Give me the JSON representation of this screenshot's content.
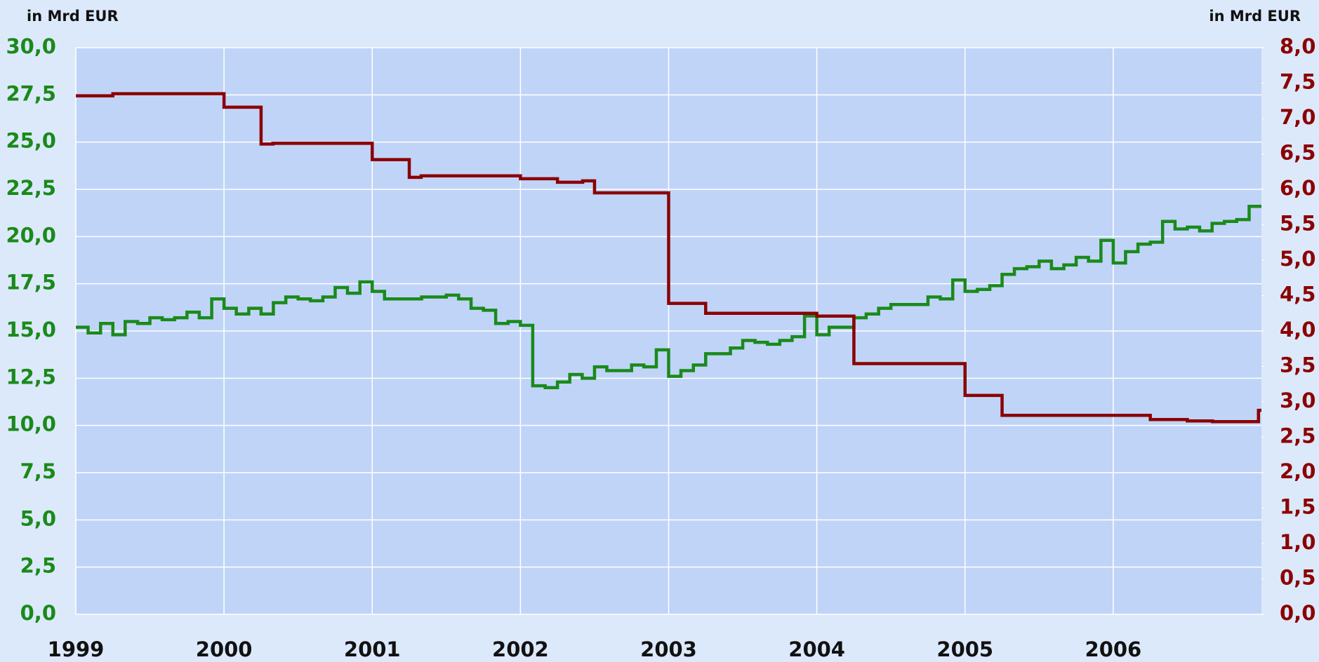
{
  "chart_data": {
    "type": "step",
    "y_label": "in Mrd EUR",
    "y2_label": "in Mrd EUR",
    "xlim": [
      1999,
      2007
    ],
    "xticks": [
      1999,
      2000,
      2001,
      2002,
      2003,
      2004,
      2005,
      2006
    ],
    "ylim": [
      0,
      30
    ],
    "yticks": [
      {
        "value": 0,
        "label": "0,0"
      },
      {
        "value": 2.5,
        "label": "2,5"
      },
      {
        "value": 5,
        "label": "5,0"
      },
      {
        "value": 7.5,
        "label": "7,5"
      },
      {
        "value": 10,
        "label": "10,0"
      },
      {
        "value": 12.5,
        "label": "12,5"
      },
      {
        "value": 15,
        "label": "15,0"
      },
      {
        "value": 17.5,
        "label": "17,5"
      },
      {
        "value": 20,
        "label": "20,0"
      },
      {
        "value": 22.5,
        "label": "22,5"
      },
      {
        "value": 25,
        "label": "25,0"
      },
      {
        "value": 27.5,
        "label": "27,5"
      },
      {
        "value": 30,
        "label": "30,0"
      }
    ],
    "y2lim": [
      0,
      8
    ],
    "y2ticks": [
      {
        "value": 0,
        "label": "0,0"
      },
      {
        "value": 0.5,
        "label": "0,5"
      },
      {
        "value": 1,
        "label": "1,0"
      },
      {
        "value": 1.5,
        "label": "1,5"
      },
      {
        "value": 2,
        "label": "2,0"
      },
      {
        "value": 2.5,
        "label": "2,5"
      },
      {
        "value": 3,
        "label": "3,0"
      },
      {
        "value": 3.5,
        "label": "3,5"
      },
      {
        "value": 4,
        "label": "4,0"
      },
      {
        "value": 4.5,
        "label": "4,5"
      },
      {
        "value": 5,
        "label": "5,0"
      },
      {
        "value": 5.5,
        "label": "5,5"
      },
      {
        "value": 6,
        "label": "6,0"
      },
      {
        "value": 6.5,
        "label": "6,5"
      },
      {
        "value": 7,
        "label": "7,0"
      },
      {
        "value": 7.5,
        "label": "7,5"
      },
      {
        "value": 8,
        "label": "8,0"
      }
    ],
    "grid": true,
    "series": [
      {
        "color": "#1a8a1a",
        "axis": "y",
        "x": [
          1999.0,
          1999.083,
          1999.167,
          1999.25,
          1999.333,
          1999.417,
          1999.5,
          1999.583,
          1999.667,
          1999.75,
          1999.833,
          1999.917,
          2000.0,
          2000.083,
          2000.167,
          2000.25,
          2000.333,
          2000.417,
          2000.5,
          2000.583,
          2000.667,
          2000.75,
          2000.833,
          2000.917,
          2001.0,
          2001.083,
          2001.167,
          2001.25,
          2001.333,
          2001.417,
          2001.5,
          2001.583,
          2001.667,
          2001.75,
          2001.833,
          2001.917,
          2002.0,
          2002.083,
          2002.167,
          2002.25,
          2002.333,
          2002.417,
          2002.5,
          2002.583,
          2002.667,
          2002.75,
          2002.833,
          2002.917,
          2003.0,
          2003.083,
          2003.167,
          2003.25,
          2003.333,
          2003.417,
          2003.5,
          2003.583,
          2003.667,
          2003.75,
          2003.833,
          2003.917,
          2004.0,
          2004.083,
          2004.167,
          2004.25,
          2004.333,
          2004.417,
          2004.5,
          2004.583,
          2004.667,
          2004.75,
          2004.833,
          2004.917,
          2005.0,
          2005.083,
          2005.167,
          2005.25,
          2005.333,
          2005.417,
          2005.5,
          2005.583,
          2005.667,
          2005.75,
          2005.833,
          2005.917,
          2006.0,
          2006.083,
          2006.167,
          2006.25,
          2006.333,
          2006.417,
          2006.5,
          2006.583,
          2006.667,
          2006.75,
          2006.833,
          2006.917
        ],
        "values": [
          15.2,
          14.9,
          15.4,
          14.8,
          15.5,
          15.4,
          15.7,
          15.6,
          15.7,
          16.0,
          15.7,
          16.7,
          16.2,
          15.9,
          16.2,
          15.9,
          16.5,
          16.8,
          16.7,
          16.6,
          16.8,
          17.3,
          17.0,
          17.6,
          17.1,
          16.7,
          16.7,
          16.7,
          16.8,
          16.8,
          16.9,
          16.7,
          16.2,
          16.1,
          15.4,
          15.5,
          15.3,
          12.1,
          12.0,
          12.3,
          12.7,
          12.5,
          13.1,
          12.9,
          12.9,
          13.2,
          13.1,
          14.0,
          12.6,
          12.9,
          13.2,
          13.8,
          13.8,
          14.1,
          14.5,
          14.4,
          14.3,
          14.5,
          14.7,
          15.8,
          14.8,
          15.2,
          15.2,
          15.7,
          15.9,
          16.2,
          16.4,
          16.4,
          16.4,
          16.8,
          16.7,
          17.7,
          17.1,
          17.2,
          17.4,
          18.0,
          18.3,
          18.4,
          18.7,
          18.3,
          18.5,
          18.9,
          18.7,
          19.8,
          18.6,
          19.2,
          19.6,
          19.7,
          20.8,
          20.4,
          20.5,
          20.3,
          20.7,
          20.8,
          20.9,
          21.6
        ]
      },
      {
        "color": "#8b0000",
        "axis": "y2",
        "x": [
          1999.0,
          1999.25,
          2000.0,
          2000.25,
          2000.33,
          2001.0,
          2001.25,
          2001.33,
          2002.0,
          2002.25,
          2002.42,
          2002.5,
          2003.0,
          2003.25,
          2004.0,
          2004.25,
          2005.0,
          2005.25,
          2006.25,
          2006.5,
          2006.67,
          2006.98
        ],
        "values": [
          7.32,
          7.35,
          7.16,
          6.64,
          6.65,
          6.42,
          6.17,
          6.19,
          6.15,
          6.1,
          6.12,
          5.95,
          4.39,
          4.25,
          4.21,
          3.54,
          3.09,
          2.81,
          2.75,
          2.73,
          2.72,
          2.88
        ]
      }
    ]
  }
}
